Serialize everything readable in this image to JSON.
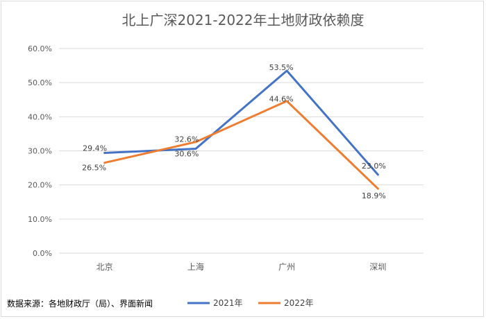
{
  "chart_data": {
    "type": "line",
    "title": "北上广深2021-2022年土地财政依赖度",
    "categories": [
      "北京",
      "上海",
      "广州",
      "深圳"
    ],
    "series": [
      {
        "name": "2021年",
        "color": "#4472C4",
        "values": [
          29.4,
          30.6,
          53.5,
          23.0
        ],
        "labels": [
          "29.4%",
          "30.6%",
          "53.5%",
          "23.0%"
        ]
      },
      {
        "name": "2022年",
        "color": "#ED7D31",
        "values": [
          26.5,
          32.6,
          44.6,
          18.9
        ],
        "labels": [
          "26.5%",
          "32.6%",
          "44.6%",
          "18.9%"
        ]
      }
    ],
    "ylim": [
      0,
      60
    ],
    "y_ticks": [
      "0.0%",
      "10.0%",
      "20.0%",
      "30.0%",
      "40.0%",
      "50.0%",
      "60.0%"
    ],
    "grid": true,
    "legend_position": "bottom",
    "source_note": "数据来源：各地财政厅（局）、界面新闻"
  }
}
